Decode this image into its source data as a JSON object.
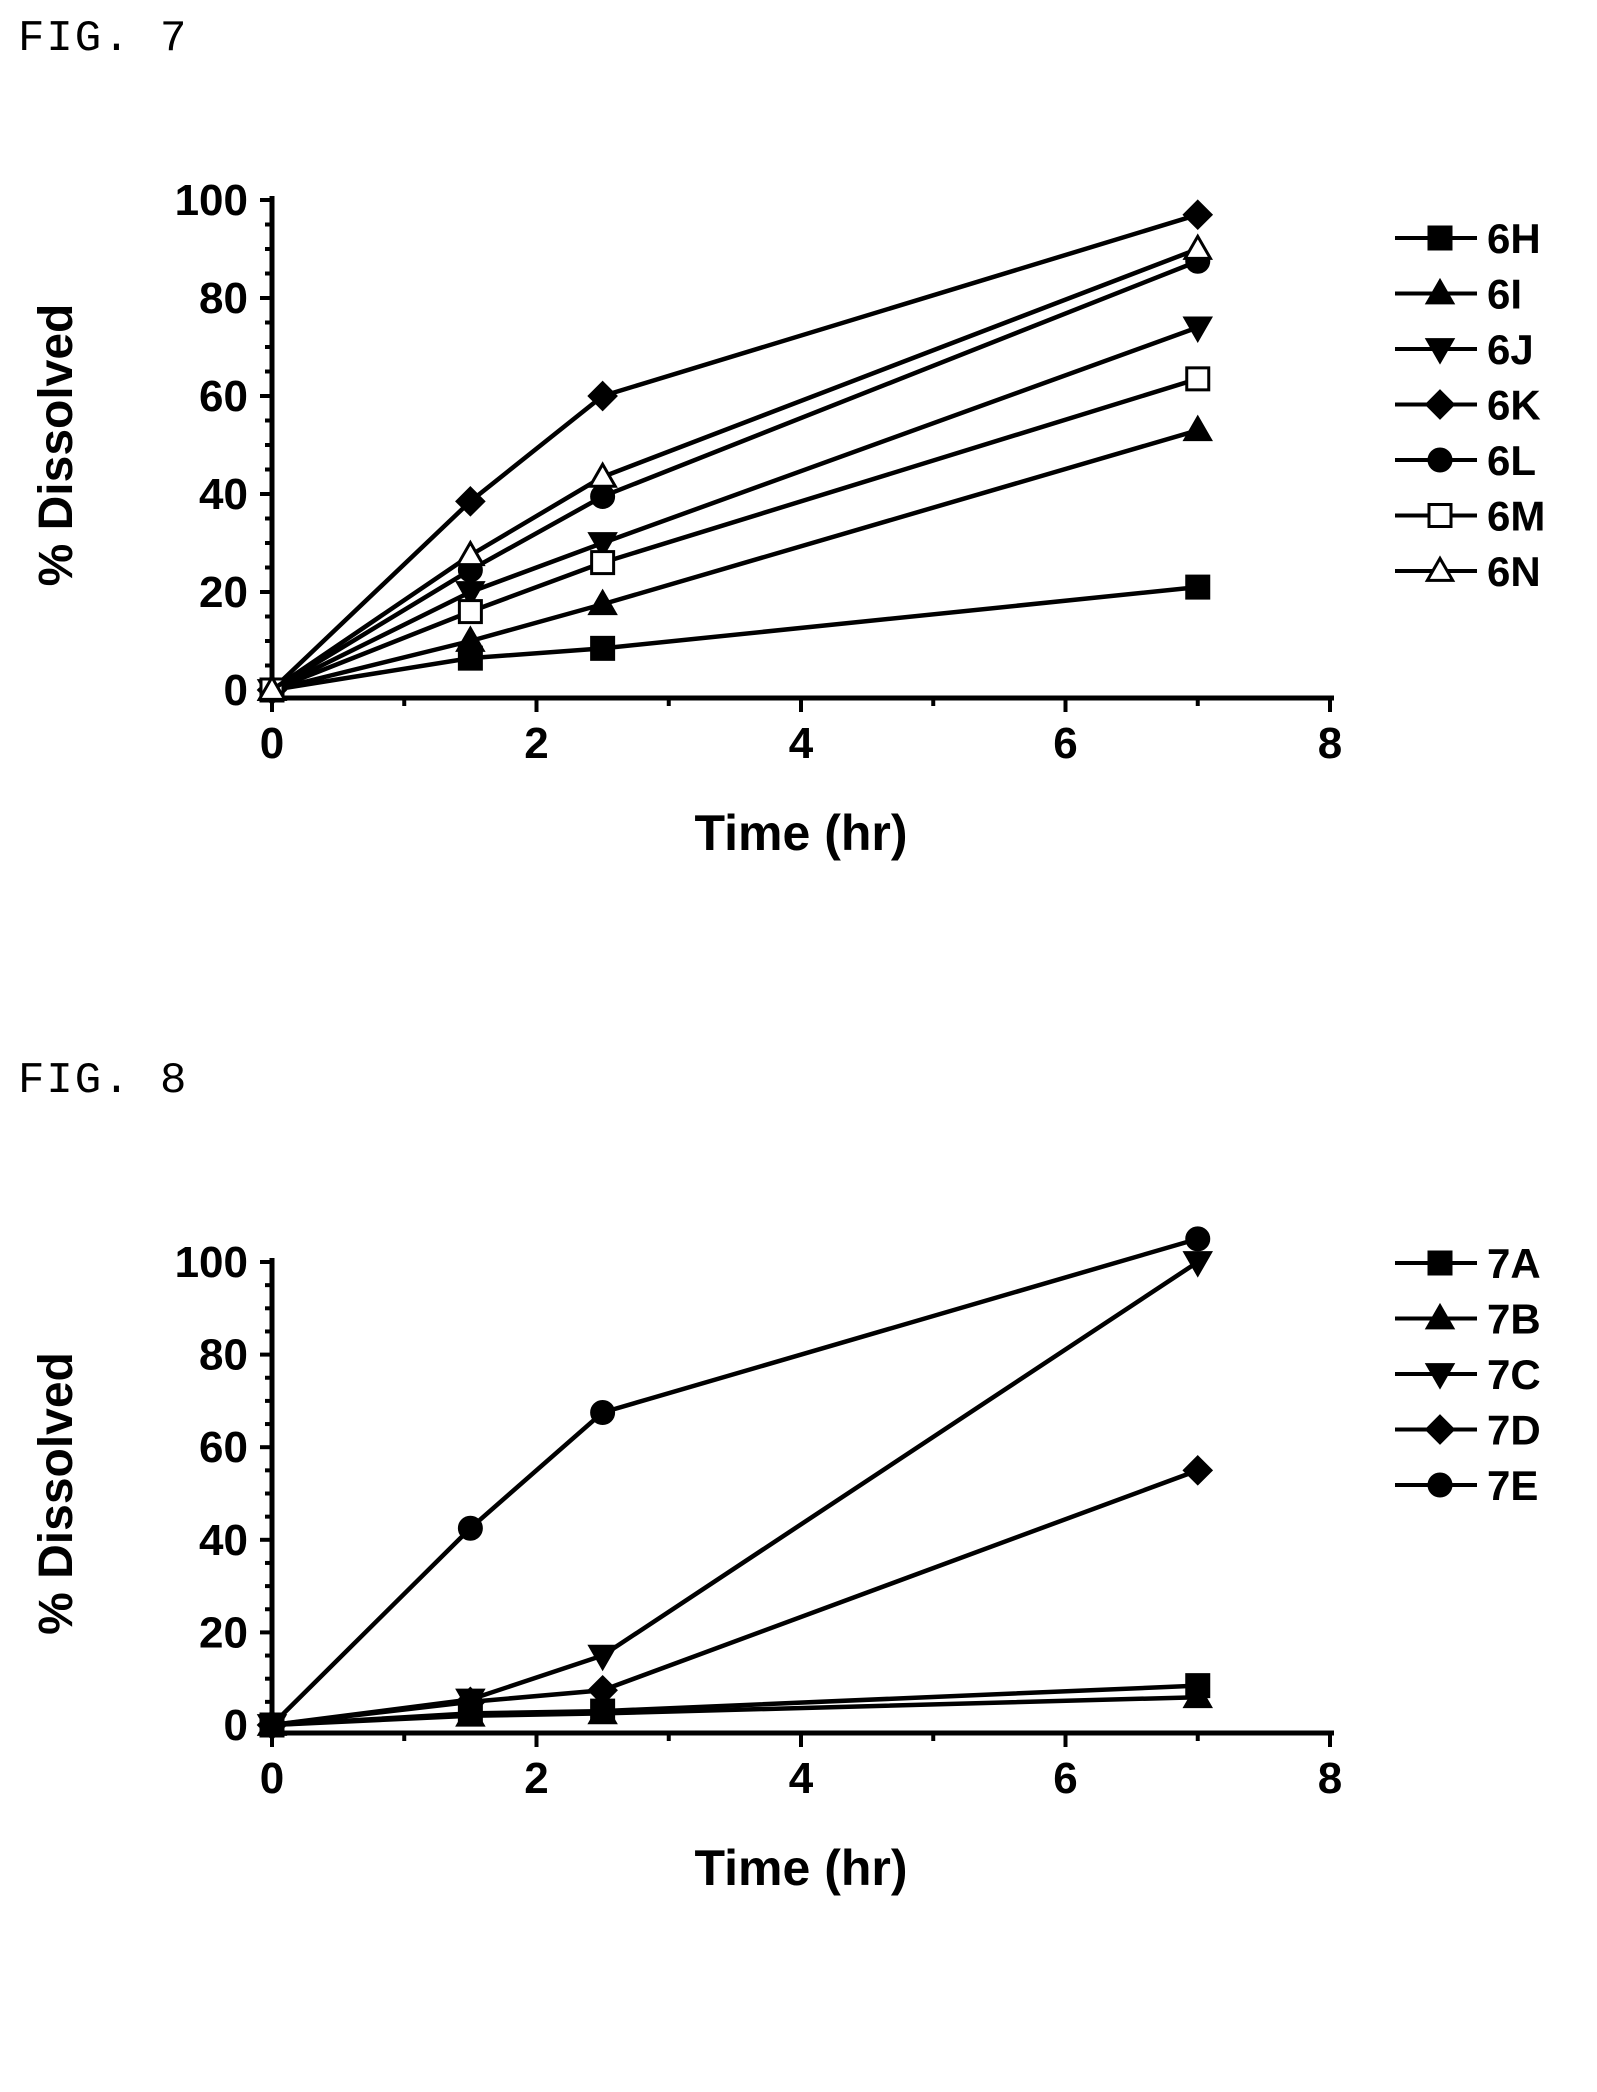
{
  "figures": [
    {
      "label": "FIG. 7"
    },
    {
      "label": "FIG. 8"
    }
  ],
  "chart_data": [
    {
      "type": "line",
      "xlabel": "Time (hr)",
      "ylabel": "% Dissolved",
      "xlim": [
        0,
        8
      ],
      "ylim": [
        0,
        100
      ],
      "xticks": [
        0,
        2,
        4,
        6,
        8
      ],
      "yticks": [
        0,
        20,
        40,
        60,
        80,
        100
      ],
      "legend_position": "right",
      "grid": false,
      "x": [
        0,
        1.5,
        2.5,
        7
      ],
      "series": [
        {
          "name": "6H",
          "marker": "square-filled",
          "values": [
            0,
            6.5,
            8.5,
            21
          ]
        },
        {
          "name": "6I",
          "marker": "triangle-up-filled",
          "values": [
            0,
            10,
            17.5,
            53
          ]
        },
        {
          "name": "6J",
          "marker": "triangle-down-filled",
          "values": [
            0,
            20,
            30,
            74
          ]
        },
        {
          "name": "6K",
          "marker": "diamond-filled",
          "values": [
            0,
            38.5,
            60,
            97
          ]
        },
        {
          "name": "6L",
          "marker": "circle-filled",
          "values": [
            0,
            24.5,
            39.5,
            87.5
          ]
        },
        {
          "name": "6M",
          "marker": "square-open",
          "values": [
            0,
            16,
            26,
            63.5
          ]
        },
        {
          "name": "6N",
          "marker": "triangle-up-open",
          "values": [
            0,
            27.5,
            43.5,
            90
          ]
        }
      ]
    },
    {
      "type": "line",
      "xlabel": "Time (hr)",
      "ylabel": "% Dissolved",
      "xlim": [
        0,
        8
      ],
      "ylim": [
        0,
        100
      ],
      "xticks": [
        0,
        2,
        4,
        6,
        8
      ],
      "yticks": [
        0,
        20,
        40,
        60,
        80,
        100
      ],
      "legend_position": "right",
      "grid": false,
      "x": [
        0,
        1.5,
        2.5,
        7
      ],
      "series": [
        {
          "name": "7A",
          "marker": "square-filled",
          "values": [
            0,
            2.5,
            3,
            8.5
          ]
        },
        {
          "name": "7B",
          "marker": "triangle-up-filled",
          "values": [
            0,
            2,
            2.5,
            6
          ]
        },
        {
          "name": "7C",
          "marker": "triangle-down-filled",
          "values": [
            0,
            5.5,
            15,
            100
          ]
        },
        {
          "name": "7D",
          "marker": "diamond-filled",
          "values": [
            0,
            5,
            7.5,
            55
          ]
        },
        {
          "name": "7E",
          "marker": "circle-filled",
          "values": [
            0,
            42.5,
            67.5,
            105
          ]
        }
      ]
    }
  ]
}
